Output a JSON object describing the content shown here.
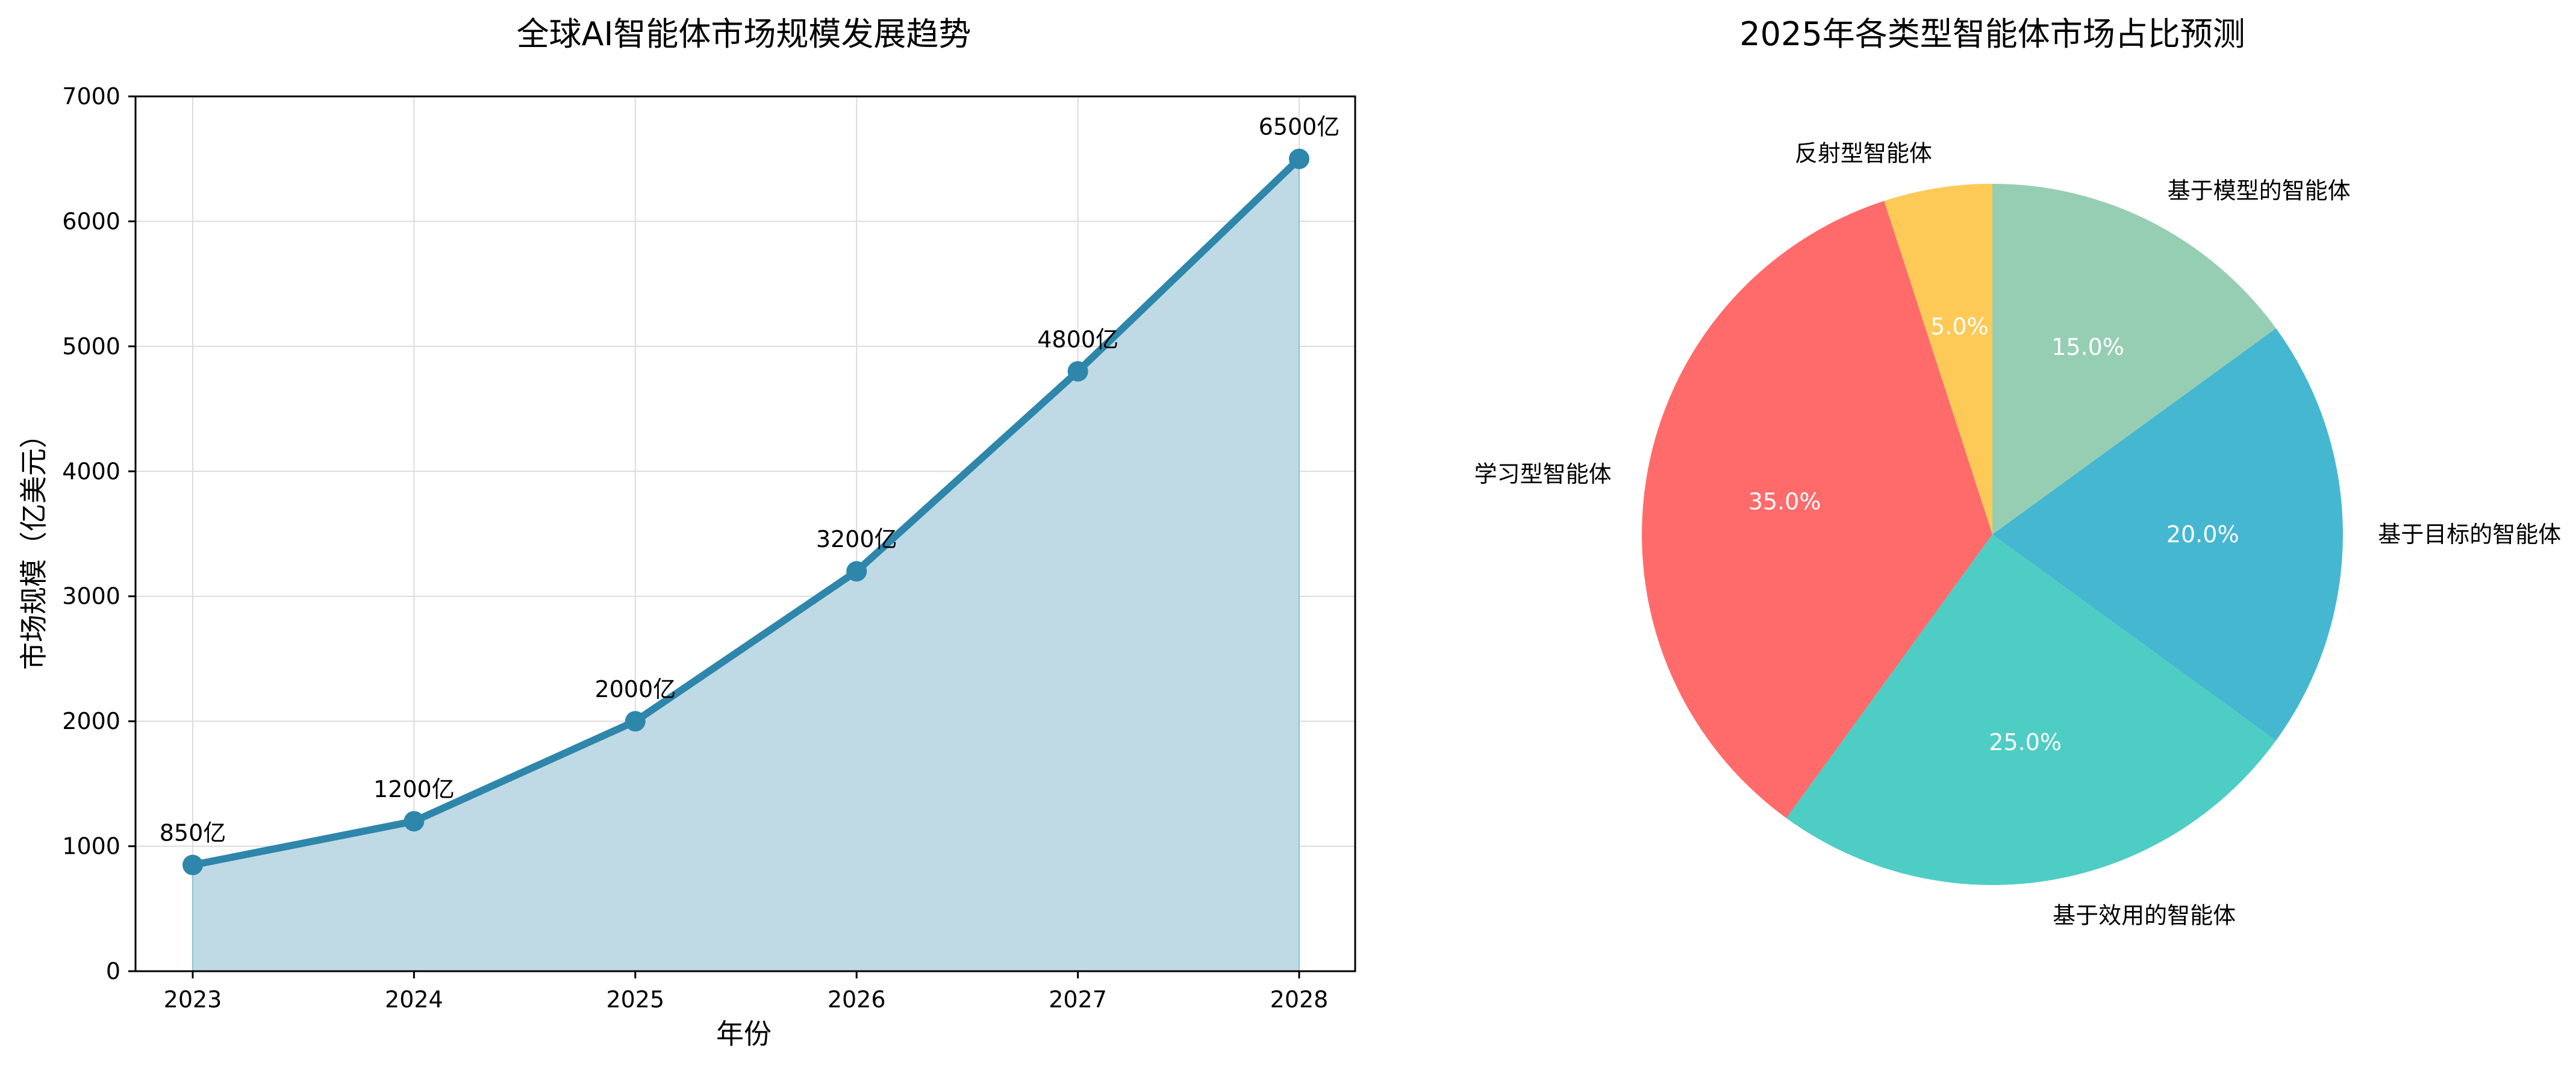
{
  "chart_data": [
    {
      "type": "line",
      "title": "全球AI智能体市场规模发展趋势",
      "xlabel": "年份",
      "ylabel": "市场规模（亿美元）",
      "x": [
        "2023",
        "2024",
        "2025",
        "2026",
        "2027",
        "2028"
      ],
      "values": [
        850,
        1200,
        2000,
        3200,
        4800,
        6500
      ],
      "annotations": [
        "850亿",
        "1200亿",
        "2000亿",
        "3200亿",
        "4800亿",
        "6500亿"
      ],
      "ylim": [
        0,
        7000
      ],
      "yticks": [
        "0",
        "1000",
        "2000",
        "3000",
        "4000",
        "5000",
        "6000",
        "7000"
      ],
      "grid": true,
      "filled_area": true,
      "line_color": "#2E86AB",
      "fill_color": "#BFDAE4"
    },
    {
      "type": "pie",
      "title": "2025年各类型智能体市场占比预测",
      "start_angle": 90,
      "direction": "counterclockwise",
      "slices": [
        {
          "label": "反射型智能体",
          "value": 5.0,
          "pct": "5.0%",
          "color": "#FECA57"
        },
        {
          "label": "学习型智能体",
          "value": 35.0,
          "pct": "35.0%",
          "color": "#FF6B6B"
        },
        {
          "label": "基于效用的智能体",
          "value": 25.0,
          "pct": "25.0%",
          "color": "#4ECDC4"
        },
        {
          "label": "基于目标的智能体",
          "value": 20.0,
          "pct": "20.0%",
          "color": "#45B7D1"
        },
        {
          "label": "基于模型的智能体",
          "value": 15.0,
          "pct": "15.0%",
          "color": "#96CEB4"
        }
      ]
    }
  ]
}
